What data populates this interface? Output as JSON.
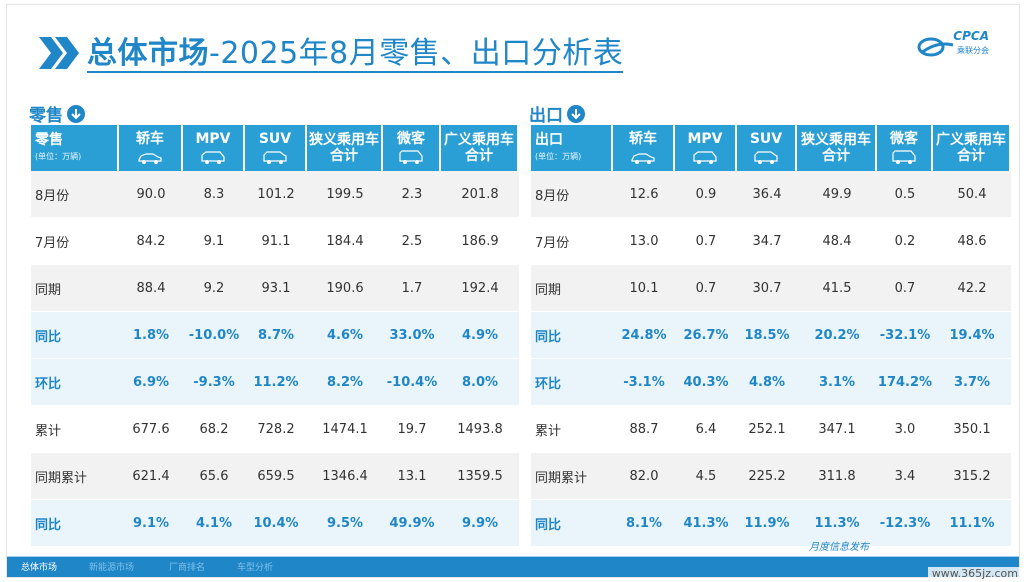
{
  "header": {
    "title_bold": "总体市场",
    "title_rest": "-2025年8月零售、出口分析表",
    "logo_text": "CPCA",
    "logo_sub": "乘联分会"
  },
  "retail": {
    "label": "零售",
    "header_first": "零售",
    "unit": "(单位：万辆)",
    "columns": [
      "轿车",
      "MPV",
      "SUV",
      "狭义乘用车合计",
      "微客",
      "广义乘用车合计"
    ],
    "column_icons": [
      "sedan-icon",
      "mpv-icon",
      "suv-icon",
      "",
      "minivan-icon",
      ""
    ],
    "rows": [
      {
        "label": "8月份",
        "values": [
          "90.0",
          "8.3",
          "101.2",
          "199.5",
          "2.3",
          "201.8"
        ]
      },
      {
        "label": "7月份",
        "values": [
          "84.2",
          "9.1",
          "91.1",
          "184.4",
          "2.5",
          "186.9"
        ]
      },
      {
        "label": "同期",
        "values": [
          "88.4",
          "9.2",
          "93.1",
          "190.6",
          "1.7",
          "192.4"
        ]
      },
      {
        "label": "同比",
        "values": [
          "1.8%",
          "-10.0%",
          "8.7%",
          "4.6%",
          "33.0%",
          "4.9%"
        ]
      },
      {
        "label": "环比",
        "values": [
          "6.9%",
          "-9.3%",
          "11.2%",
          "8.2%",
          "-10.4%",
          "8.0%"
        ]
      },
      {
        "label": "累计",
        "values": [
          "677.6",
          "68.2",
          "728.2",
          "1474.1",
          "19.7",
          "1493.8"
        ]
      },
      {
        "label": "同期累计",
        "values": [
          "621.4",
          "65.6",
          "659.5",
          "1346.4",
          "13.1",
          "1359.5"
        ]
      },
      {
        "label": "同比",
        "values": [
          "9.1%",
          "4.1%",
          "10.4%",
          "9.5%",
          "49.9%",
          "9.9%"
        ]
      }
    ]
  },
  "export": {
    "label": "出口",
    "header_first": "出口",
    "unit": "(单位：万辆)",
    "columns": [
      "轿车",
      "MPV",
      "SUV",
      "狭义乘用车合计",
      "微客",
      "广义乘用车合计"
    ],
    "rows": [
      {
        "label": "8月份",
        "values": [
          "12.6",
          "0.9",
          "36.4",
          "49.9",
          "0.5",
          "50.4"
        ]
      },
      {
        "label": "7月份",
        "values": [
          "13.0",
          "0.7",
          "34.7",
          "48.4",
          "0.2",
          "48.6"
        ]
      },
      {
        "label": "同期",
        "values": [
          "10.1",
          "0.7",
          "30.7",
          "41.5",
          "0.7",
          "42.2"
        ]
      },
      {
        "label": "同比",
        "values": [
          "24.8%",
          "26.7%",
          "18.5%",
          "20.2%",
          "-32.1%",
          "19.4%"
        ]
      },
      {
        "label": "环比",
        "values": [
          "-3.1%",
          "40.3%",
          "4.8%",
          "3.1%",
          "174.2%",
          "3.7%"
        ]
      },
      {
        "label": "累计",
        "values": [
          "88.7",
          "6.4",
          "252.1",
          "347.1",
          "3.0",
          "350.1"
        ]
      },
      {
        "label": "同期累计",
        "values": [
          "82.0",
          "4.5",
          "225.2",
          "311.8",
          "3.4",
          "315.2"
        ]
      },
      {
        "label": "同比",
        "values": [
          "8.1%",
          "41.3%",
          "11.9%",
          "11.3%",
          "-12.3%",
          "11.1%"
        ]
      }
    ]
  },
  "footer": {
    "tabs": [
      "总体市场",
      "新能源市场",
      "厂商排名",
      "车型分析"
    ],
    "right_text": "月度信息发布",
    "watermark": "www.365jz.com"
  },
  "colors": {
    "accent": "#1f86c8",
    "header_bg": "#2a9fd6",
    "highlight_row": "#eaf4fb",
    "alt_row": "#f2f2f2"
  }
}
